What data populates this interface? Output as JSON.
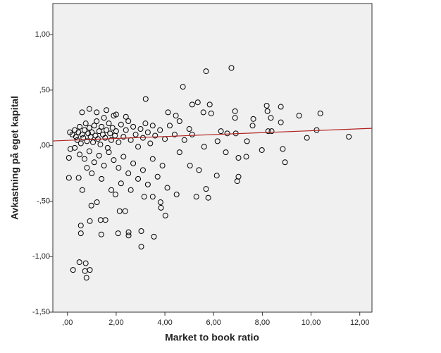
{
  "chart_data": {
    "type": "scatter",
    "x_label": "Market to book ratio",
    "y_label": "Avkastning på eget kapital",
    "marker_color": "#000000",
    "background": "#f0f0f0",
    "xlim": [
      -0.6,
      12.5
    ],
    "ylim": [
      -1.5,
      1.28
    ],
    "xticks": [
      {
        "value": 0,
        "label": ",00"
      },
      {
        "value": 2,
        "label": "2,00"
      },
      {
        "value": 4,
        "label": "4,00"
      },
      {
        "value": 6,
        "label": "6,00"
      },
      {
        "value": 8,
        "label": "8,00"
      },
      {
        "value": 10,
        "label": "10,00"
      },
      {
        "value": 12,
        "label": "12,00"
      }
    ],
    "yticks": [
      {
        "value": -1.5,
        "label": "-1,50"
      },
      {
        "value": -1,
        "label": "-1,00"
      },
      {
        "value": -0.5,
        "label": "-,50"
      },
      {
        "value": 0,
        "label": ",00"
      },
      {
        "value": 0.5,
        "label": ",50"
      },
      {
        "value": 1,
        "label": "1,00"
      }
    ],
    "fit_line": {
      "x": [
        -0.6,
        12.5
      ],
      "y": [
        0.042,
        0.156
      ],
      "color": "#b22222"
    },
    "x": [
      6.73,
      5.69,
      4.74,
      3.21,
      0.23,
      0.49,
      0.75,
      0.78,
      0.72,
      0.92,
      3.03,
      3.55,
      3.03,
      2.51,
      2.08,
      1.39,
      0.55,
      0.55,
      0.92,
      1.36,
      1.56,
      2.51,
      2.14,
      2.37,
      4.02,
      3.84,
      3.82,
      0.98,
      1.21,
      1.97,
      4.48,
      5.29,
      5.78,
      5.69,
      6.97,
      7.02,
      6.13,
      5.4,
      5.03,
      0.06,
      0.46,
      0.61,
      2.6,
      3.15,
      3.5,
      8.93,
      8.84,
      7.98,
      7.02,
      7.34,
      6.5,
      4.6,
      11.55,
      9.83,
      10.23,
      10.38,
      9.51,
      8.76,
      8.18,
      8.21,
      8.35,
      8.76,
      8.24,
      8.38,
      7.63,
      7.6,
      6.88,
      6.88,
      7.37,
      6.91,
      6.56,
      5.9,
      5.84,
      5.35,
      5.12,
      5.58,
      4.13,
      4.45,
      5.12,
      5.61,
      6.16,
      6.3,
      0.06,
      0.12,
      0.1,
      0.2,
      0.3,
      0.35,
      0.4,
      0.45,
      0.5,
      0.55,
      0.6,
      0.65,
      0.7,
      0.75,
      0.8,
      0.85,
      0.9,
      0.95,
      1.0,
      1.05,
      1.1,
      1.15,
      1.2,
      1.25,
      1.3,
      1.35,
      1.4,
      1.45,
      1.5,
      1.55,
      1.6,
      1.65,
      1.7,
      1.75,
      1.8,
      1.85,
      1.9,
      1.95,
      2.0,
      2.1,
      2.2,
      2.3,
      2.4,
      2.5,
      2.6,
      2.7,
      2.8,
      2.9,
      3.0,
      3.1,
      3.2,
      3.3,
      3.4,
      3.5,
      3.6,
      3.8,
      4.0,
      4.2,
      4.4,
      4.6,
      4.8,
      5.0,
      0.5,
      0.7,
      0.9,
      1.1,
      1.3,
      1.5,
      1.7,
      1.9,
      2.1,
      2.3,
      2.5,
      2.7,
      2.9,
      3.1,
      3.3,
      3.5,
      3.7,
      3.9,
      4.1,
      0.3,
      0.6,
      0.9,
      1.2,
      1.6,
      2.0,
      2.4,
      0.8,
      1.0,
      1.4,
      2.2,
      1.8
    ],
    "y": [
      0.7,
      0.67,
      0.53,
      0.42,
      -1.12,
      -1.05,
      -1.06,
      -1.19,
      -1.13,
      -1.12,
      -0.91,
      -0.82,
      -0.77,
      -0.78,
      -0.79,
      -0.8,
      -0.79,
      -0.72,
      -0.68,
      -0.67,
      -0.67,
      -0.81,
      -0.59,
      -0.59,
      -0.63,
      -0.56,
      -0.51,
      -0.54,
      -0.51,
      -0.44,
      -0.44,
      -0.46,
      -0.47,
      -0.39,
      -0.32,
      -0.28,
      -0.27,
      -0.22,
      -0.18,
      -0.29,
      -0.29,
      -0.4,
      -0.4,
      -0.46,
      -0.46,
      -0.15,
      -0.03,
      -0.04,
      -0.11,
      -0.1,
      -0.06,
      -0.06,
      0.08,
      0.07,
      0.14,
      0.29,
      0.27,
      0.35,
      0.36,
      0.31,
      0.25,
      0.21,
      0.13,
      0.13,
      0.24,
      0.18,
      0.31,
      0.25,
      0.04,
      0.11,
      0.11,
      0.29,
      0.37,
      0.39,
      0.37,
      0.3,
      0.3,
      0.27,
      0.1,
      -0.01,
      0.04,
      0.13,
      -0.11,
      -0.03,
      0.12,
      0.1,
      0.14,
      0.08,
      0.05,
      0.12,
      0.17,
      0.02,
      0.1,
      0.07,
      0.14,
      0.2,
      0.04,
      0.11,
      0.16,
      0.08,
      0.12,
      0.03,
      0.18,
      0.09,
      0.22,
      0.06,
      0.13,
      0.01,
      0.17,
      0.1,
      0.25,
      0.07,
      0.14,
      -0.02,
      0.2,
      0.11,
      0.05,
      0.16,
      0.27,
      0.09,
      0.13,
      0.03,
      0.19,
      0.08,
      0.14,
      0.22,
      0.05,
      0.17,
      0.1,
      -0.01,
      0.15,
      0.07,
      0.2,
      0.12,
      0.02,
      0.18,
      0.09,
      0.14,
      0.06,
      0.18,
      0.1,
      0.22,
      0.05,
      0.15,
      -0.08,
      -0.12,
      -0.05,
      -0.15,
      -0.09,
      -0.18,
      -0.06,
      -0.13,
      -0.2,
      -0.1,
      -0.25,
      -0.16,
      -0.3,
      -0.22,
      -0.35,
      -0.12,
      -0.28,
      -0.18,
      -0.38,
      -0.02,
      0.3,
      0.33,
      0.3,
      0.32,
      0.28,
      0.26,
      -0.2,
      -0.25,
      -0.3,
      -0.34,
      -0.4
    ]
  }
}
